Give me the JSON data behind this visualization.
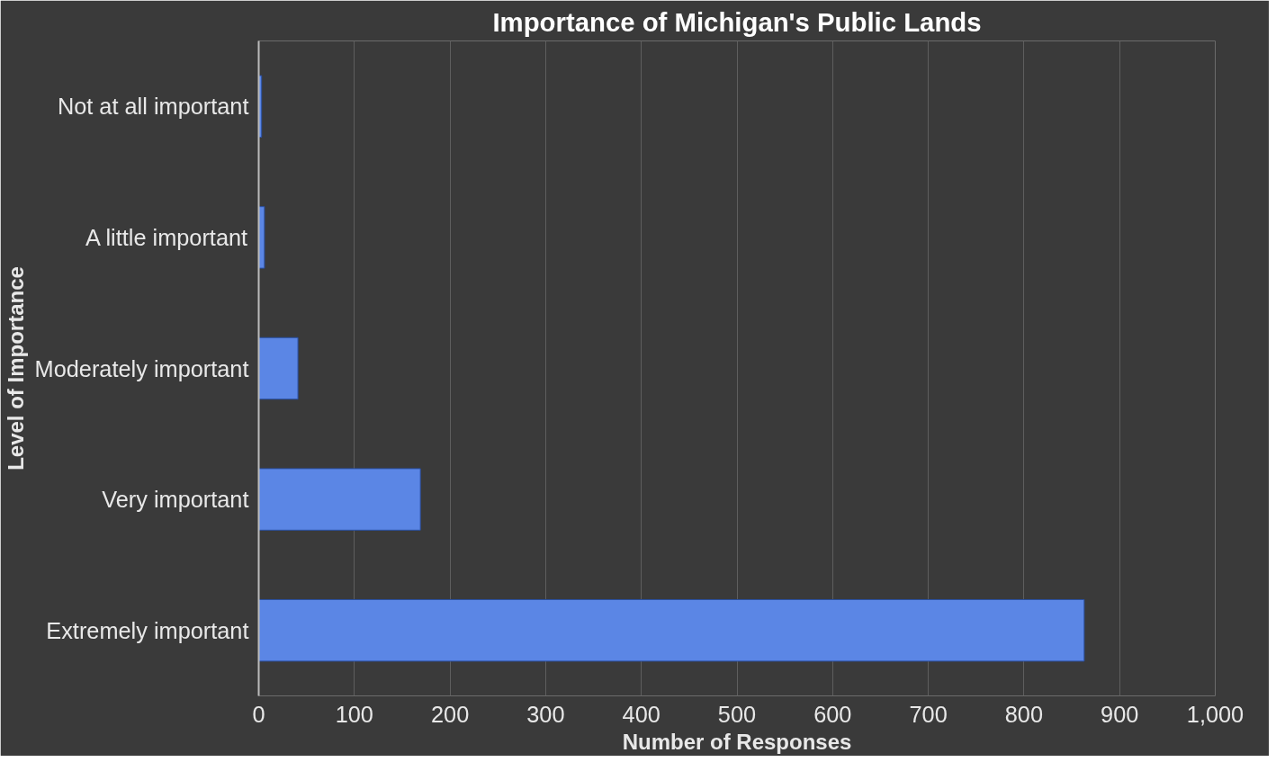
{
  "chart_data": {
    "type": "bar",
    "orientation": "horizontal",
    "title": "Importance of Michigan's Public Lands",
    "xlabel": "Number of Responses",
    "ylabel": "Level of Importance",
    "categories": [
      "Not at all important",
      "A little important",
      "Moderately important",
      "Very important",
      "Extremely important"
    ],
    "values": [
      3,
      6,
      41,
      169,
      863
    ],
    "color": "#5b86e5",
    "xlim": [
      0,
      1000
    ],
    "xticks": [
      0,
      100,
      200,
      300,
      400,
      500,
      600,
      700,
      800,
      900,
      {
        "value": 1000,
        "label": "1,000"
      }
    ],
    "grid": "x"
  }
}
